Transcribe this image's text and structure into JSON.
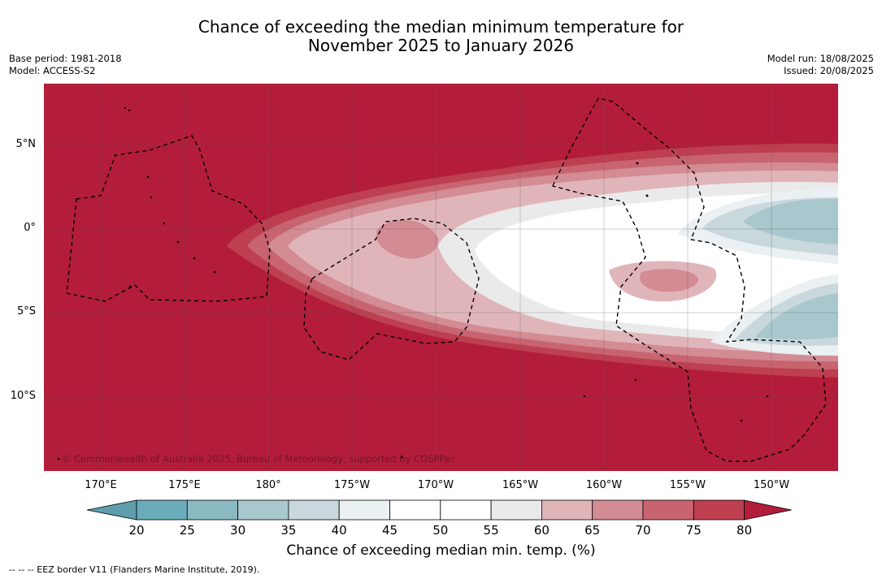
{
  "title": {
    "line1": "Chance of exceeding the median minimum temperature for",
    "line2": "November 2025 to January 2026"
  },
  "meta_left": {
    "base_period": "Base period: 1981-2018",
    "model": "Model: ACCESS-S2"
  },
  "meta_right": {
    "model_run": "Model run: 18/08/2025",
    "issued": "Issued: 20/08/2025"
  },
  "map": {
    "lat_labels": [
      "5°N",
      "0°",
      "5°S",
      "10°S"
    ],
    "lon_labels": [
      "170°E",
      "175°E",
      "180°",
      "175°W",
      "170°W",
      "165°W",
      "160°W",
      "155°W",
      "150°W"
    ],
    "copyright": "© Commonwealth of Australia 2025, Bureau of Meteorology, supported by COSPPac"
  },
  "colorbar": {
    "ticks": [
      "20",
      "25",
      "30",
      "35",
      "40",
      "45",
      "50",
      "55",
      "60",
      "65",
      "70",
      "75",
      "80"
    ],
    "colors": [
      "#5e9ead",
      "#6aacbb",
      "#8ab9c2",
      "#a8c8cd",
      "#c9d8dc",
      "#ebf0f2",
      "#ffffff",
      "#ffffff",
      "#ebeaea",
      "#e0b5ba",
      "#d38b94",
      "#c86470",
      "#bd3f50",
      "#b31d3a"
    ],
    "title": "Chance of exceeding median min. temp. (%)"
  },
  "legend": {
    "text": "-- -- -- EEZ border V11 (Flanders Marine Institute, 2019)."
  }
}
